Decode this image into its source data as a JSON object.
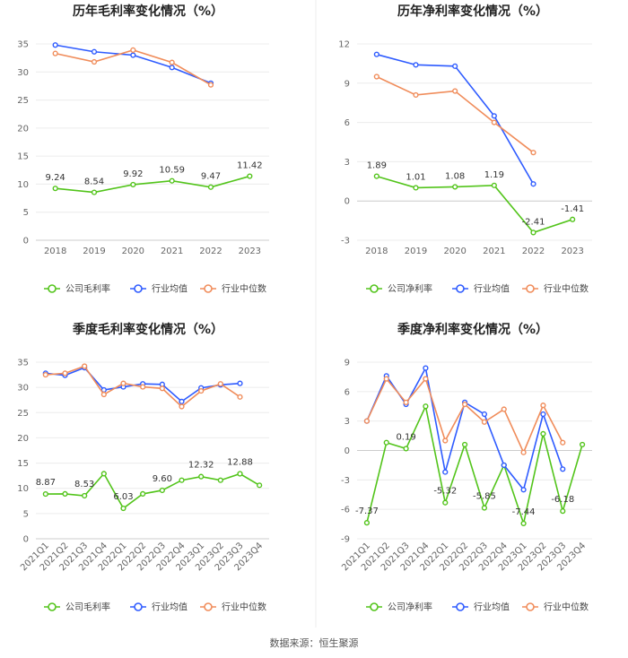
{
  "chart_data": [
    {
      "type": "line",
      "title": "历年毛利率变化情况（%）",
      "categories": [
        "2018",
        "2019",
        "2020",
        "2021",
        "2022",
        "2023"
      ],
      "ylim": [
        0,
        35
      ],
      "yticks": [
        0,
        5,
        10,
        15,
        20,
        25,
        30,
        35
      ],
      "xlabel": "",
      "ylabel": "",
      "label_series": "公司毛利率",
      "series": [
        {
          "name": "公司毛利率",
          "color": "#52c41a",
          "values": [
            9.24,
            8.54,
            9.92,
            10.59,
            9.47,
            11.42
          ]
        },
        {
          "name": "行业均值",
          "color": "#2e5bff",
          "values": [
            34.8,
            33.6,
            33.0,
            30.8,
            28.0,
            null
          ]
        },
        {
          "name": "行业中位数",
          "color": "#f08c5a",
          "values": [
            33.3,
            31.8,
            33.9,
            31.7,
            27.7,
            null
          ]
        }
      ],
      "labels": [
        "9.24",
        "8.54",
        "9.92",
        "10.59",
        "9.47",
        "11.42"
      ]
    },
    {
      "type": "line",
      "title": "历年净利率变化情况（%）",
      "categories": [
        "2018",
        "2019",
        "2020",
        "2021",
        "2022",
        "2023"
      ],
      "ylim": [
        -3,
        12
      ],
      "yticks": [
        -3,
        0,
        3,
        6,
        9,
        12
      ],
      "xlabel": "",
      "ylabel": "",
      "label_series": "公司净利率",
      "series": [
        {
          "name": "公司净利率",
          "color": "#52c41a",
          "values": [
            1.89,
            1.01,
            1.08,
            1.19,
            -2.41,
            -1.41
          ]
        },
        {
          "name": "行业均值",
          "color": "#2e5bff",
          "values": [
            11.2,
            10.4,
            10.3,
            6.5,
            1.3,
            null
          ]
        },
        {
          "name": "行业中位数",
          "color": "#f08c5a",
          "values": [
            9.5,
            8.1,
            8.4,
            6.0,
            3.7,
            null
          ]
        }
      ],
      "labels": [
        "1.89",
        "1.01",
        "1.08",
        "1.19",
        "-2.41",
        "-1.41"
      ]
    },
    {
      "type": "line",
      "title": "季度毛利率变化情况（%）",
      "categories": [
        "2021Q1",
        "2021Q2",
        "2021Q3",
        "2021Q4",
        "2022Q1",
        "2022Q2",
        "2022Q3",
        "2022Q4",
        "2023Q1",
        "2023Q2",
        "2023Q3",
        "2023Q4"
      ],
      "ylim": [
        0,
        35
      ],
      "yticks": [
        0,
        5,
        10,
        15,
        20,
        25,
        30,
        35
      ],
      "xlabel": "",
      "ylabel": "",
      "label_series": "公司毛利率",
      "series": [
        {
          "name": "公司毛利率",
          "color": "#52c41a",
          "values": [
            8.87,
            8.9,
            8.53,
            12.9,
            6.03,
            8.9,
            9.6,
            11.6,
            12.32,
            11.6,
            12.88,
            10.6
          ]
        },
        {
          "name": "行业均值",
          "color": "#2e5bff",
          "values": [
            32.8,
            32.4,
            33.9,
            29.5,
            30.1,
            30.7,
            30.6,
            27.2,
            29.9,
            30.5,
            30.8,
            null
          ]
        },
        {
          "name": "行业中位数",
          "color": "#f08c5a",
          "values": [
            32.5,
            32.8,
            34.2,
            28.6,
            30.8,
            30.1,
            29.8,
            26.2,
            29.3,
            30.7,
            28.1,
            null
          ]
        }
      ],
      "labels": [
        "8.87",
        "",
        "8.53",
        "",
        "6.03",
        "",
        "9.60",
        "",
        "12.32",
        "",
        "12.88",
        ""
      ]
    },
    {
      "type": "line",
      "title": "季度净利率变化情况（%）",
      "categories": [
        "2021Q1",
        "2021Q2",
        "2021Q3",
        "2021Q4",
        "2022Q1",
        "2022Q2",
        "2022Q3",
        "2022Q4",
        "2023Q1",
        "2023Q2",
        "2023Q3",
        "2023Q4"
      ],
      "ylim": [
        -9,
        9
      ],
      "yticks": [
        -9,
        -6,
        -3,
        0,
        3,
        6,
        9
      ],
      "xlabel": "",
      "ylabel": "",
      "label_series": "公司净利率",
      "series": [
        {
          "name": "公司净利率",
          "color": "#52c41a",
          "values": [
            -7.37,
            0.8,
            0.19,
            4.5,
            -5.32,
            0.6,
            -5.85,
            -1.5,
            -7.44,
            1.7,
            -6.18,
            0.6
          ]
        },
        {
          "name": "行业均值",
          "color": "#2e5bff",
          "values": [
            3.0,
            7.6,
            4.7,
            8.4,
            -2.2,
            4.9,
            3.7,
            -1.5,
            -4.0,
            3.7,
            -1.9,
            null
          ]
        },
        {
          "name": "行业中位数",
          "color": "#f08c5a",
          "values": [
            3.0,
            7.3,
            4.9,
            7.3,
            1.0,
            4.7,
            2.9,
            4.2,
            -0.2,
            4.6,
            0.8,
            null
          ]
        }
      ],
      "labels": [
        "-7.37",
        "",
        "0.19",
        "",
        "-5.32",
        "",
        "-5.85",
        "",
        "-7.44",
        "",
        "-6.18",
        ""
      ]
    }
  ],
  "source": "数据来源：恒生聚源"
}
